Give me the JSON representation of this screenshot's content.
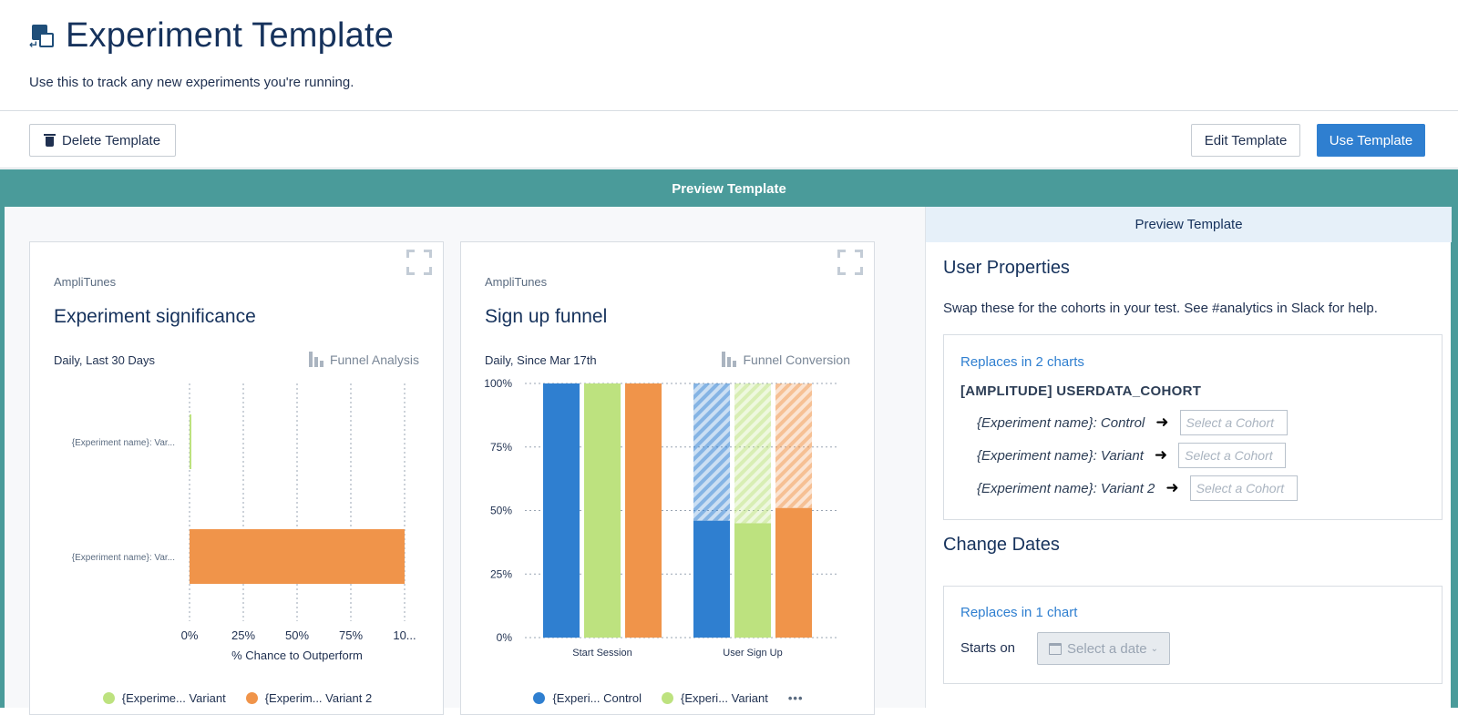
{
  "page": {
    "title": "Experiment Template",
    "description": "Use this to track any new experiments you're running."
  },
  "toolbar": {
    "delete_label": "Delete Template",
    "edit_label": "Edit Template",
    "use_label": "Use Template"
  },
  "preview": {
    "band_title": "Preview Template"
  },
  "cards": [
    {
      "app": "AmpliTunes",
      "title": "Experiment significance",
      "range": "Daily, Last 30 Days",
      "type": "Funnel Analysis",
      "legend": [
        {
          "label": "{Experime... Variant",
          "color": "#bde27f"
        },
        {
          "label": "{Experim... Variant 2",
          "color": "#f0944a"
        }
      ]
    },
    {
      "app": "AmpliTunes",
      "title": "Sign up funnel",
      "range": "Daily, Since Mar 17th",
      "type": "Funnel Conversion",
      "legend": [
        {
          "label": "{Experi... Control",
          "color": "#2f7fd0"
        },
        {
          "label": "{Experi... Variant",
          "color": "#bde27f"
        }
      ],
      "more": "•••"
    }
  ],
  "chart_data": [
    {
      "type": "bar",
      "orientation": "horizontal",
      "title": "Experiment significance",
      "categories": [
        "{Experiment name}: Var...",
        "{Experiment name}: Var..."
      ],
      "values": [
        0.5,
        100
      ],
      "colors": [
        "#bde27f",
        "#f0944a"
      ],
      "xlabel": "% Chance to Outperform",
      "xticks": [
        "0%",
        "25%",
        "50%",
        "75%",
        "10..."
      ],
      "xlim": [
        0,
        100
      ],
      "grid": true
    },
    {
      "type": "bar",
      "title": "Sign up funnel",
      "categories": [
        "Start Session",
        "User Sign Up"
      ],
      "series": [
        {
          "name": "{Experiment name}: Control",
          "color": "#2f7fd0",
          "values": [
            100,
            46
          ]
        },
        {
          "name": "{Experiment name}: Variant",
          "color": "#bde27f",
          "values": [
            100,
            45
          ]
        },
        {
          "name": "{Experiment name}: Variant 2",
          "color": "#f0944a",
          "values": [
            100,
            51
          ]
        }
      ],
      "yticks": [
        "0%",
        "25%",
        "50%",
        "75%",
        "100%"
      ],
      "ylim": [
        0,
        100
      ],
      "dropoff_hatched": true,
      "grid": true
    }
  ],
  "side": {
    "header": "Preview Template",
    "user_props_title": "User Properties",
    "user_props_desc": "Swap these for the cohorts in your test. See #analytics in Slack for help.",
    "cohort_box": {
      "link": "Replaces in 2 charts",
      "property": "[AMPLITUDE] USERDATA_COHORT",
      "rows": [
        {
          "label": "{Experiment name}: Control",
          "placeholder": "Select a Cohort"
        },
        {
          "label": "{Experiment name}: Variant",
          "placeholder": "Select a Cohort"
        },
        {
          "label": "{Experiment name}: Variant 2",
          "placeholder": "Select a Cohort"
        }
      ]
    },
    "dates_title": "Change Dates",
    "dates_box": {
      "link": "Replaces in 1 chart",
      "starts_label": "Starts on",
      "date_placeholder": "Select a date"
    }
  }
}
